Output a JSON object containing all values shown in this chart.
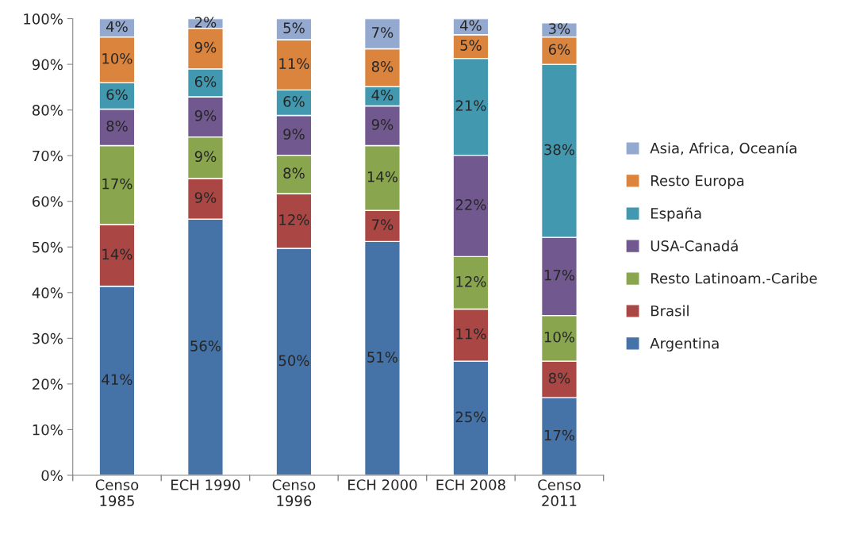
{
  "chart_data": {
    "type": "bar",
    "stacked": true,
    "categories": [
      "Censo\n1985",
      "ECH 1990",
      "Censo\n1996",
      "ECH 2000",
      "ECH 2008",
      "Censo\n2011"
    ],
    "ylim": [
      0,
      100
    ],
    "yticks": [
      {
        "value": 0,
        "label": "0%"
      },
      {
        "value": 10,
        "label": "10%"
      },
      {
        "value": 20,
        "label": "20%"
      },
      {
        "value": 30,
        "label": "30%"
      },
      {
        "value": 40,
        "label": "40%"
      },
      {
        "value": 50,
        "label": "50%"
      },
      {
        "value": 60,
        "label": "60%"
      },
      {
        "value": 70,
        "label": "70%"
      },
      {
        "value": 80,
        "label": "80%"
      },
      {
        "value": 90,
        "label": "90%"
      },
      {
        "value": 100,
        "label": "100%"
      }
    ],
    "grid": false,
    "legend": "right",
    "series": [
      {
        "name": "Argentina",
        "color": "#4572a7",
        "values": [
          41.4,
          56.1,
          49.7,
          51.2,
          25.0,
          17.0
        ],
        "value_labels": [
          "41%",
          "56%",
          "50%",
          "51%",
          "25%",
          "17%"
        ]
      },
      {
        "name": "Brasil",
        "color": "#aa4643",
        "values": [
          13.5,
          8.9,
          12.0,
          6.8,
          11.4,
          8.0
        ],
        "value_labels": [
          "14%",
          "9%",
          "12%",
          "7%",
          "11%",
          "8%"
        ]
      },
      {
        "name": "Resto Latinoam.-Caribe",
        "color": "#89a54e",
        "values": [
          17.3,
          9.1,
          8.4,
          14.2,
          11.5,
          10.0
        ],
        "value_labels": [
          "17%",
          "9%",
          "8%",
          "14%",
          "12%",
          "10%"
        ]
      },
      {
        "name": "USA-Canadá",
        "color": "#71588f",
        "values": [
          8.0,
          8.8,
          8.7,
          8.7,
          22.2,
          17.1
        ],
        "value_labels": [
          "8%",
          "9%",
          "9%",
          "9%",
          "22%",
          "17%"
        ]
      },
      {
        "name": "España",
        "color": "#4198af",
        "values": [
          5.8,
          6.1,
          5.6,
          4.2,
          21.2,
          37.9
        ],
        "value_labels": [
          "6%",
          "6%",
          "6%",
          "4%",
          "21%",
          "38%"
        ]
      },
      {
        "name": "Resto Europa",
        "color": "#db843d",
        "values": [
          10.0,
          8.9,
          11.0,
          8.3,
          5.2,
          6.0
        ],
        "value_labels": [
          "10%",
          "9%",
          "11%",
          "8%",
          "5%",
          "6%"
        ]
      },
      {
        "name": "Asia, Africa, Oceanía",
        "color": "#93a9cf",
        "values": [
          4.0,
          2.1,
          4.6,
          6.6,
          3.5,
          3.1
        ],
        "value_labels": [
          "4%",
          "2%",
          "5%",
          "7%",
          "4%",
          "3%"
        ]
      }
    ]
  }
}
